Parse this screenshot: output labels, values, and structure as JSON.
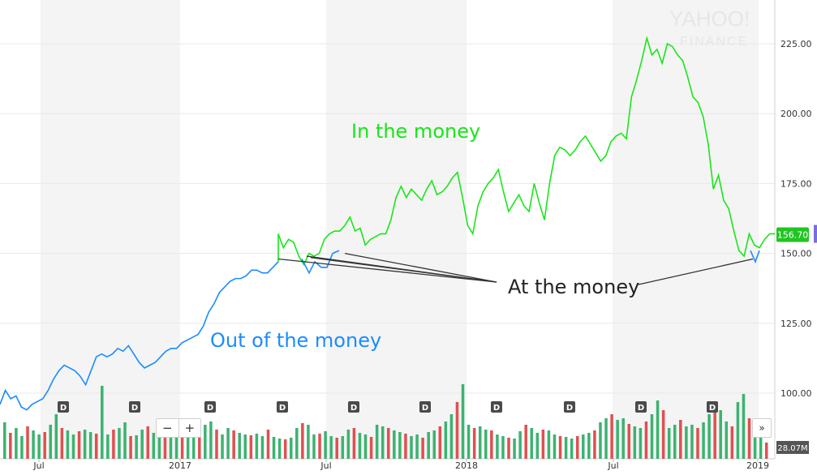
{
  "chart_data": {
    "type": "line",
    "watermark": {
      "line1": "YAHOO!",
      "line2": "FINANCE"
    },
    "x_tick_labels": [
      "Jul",
      "2017",
      "Jul",
      "2018",
      "Jul",
      "2019"
    ],
    "y_ticks": [
      "225.00",
      "200.00",
      "175.00",
      "150.00",
      "125.00",
      "100.00"
    ],
    "ylim": [
      95,
      228
    ],
    "last_price": "156.70",
    "volume_label": "28.07M",
    "dividend_marker": "D",
    "annotations": {
      "in_the_money": "In the money",
      "at_the_money": "At the money",
      "out_of_the_money": "Out of the money"
    },
    "colors": {
      "out_of_the_money": "#1a8cff",
      "in_the_money": "#19e619",
      "up_volume": "#3cb371",
      "down_volume": "#e05050",
      "price_badge": "#21c521",
      "band": "#f4f4f4"
    },
    "series": [
      {
        "name": "Out of the money",
        "color": "#1a8cff",
        "values": [
          96,
          101,
          98,
          99,
          95,
          94,
          96,
          97,
          98,
          101,
          105,
          108,
          110,
          109,
          108,
          106,
          103,
          108,
          113,
          114,
          113,
          114,
          116,
          115,
          117,
          114,
          111,
          109,
          110,
          111,
          113,
          115,
          116,
          116,
          118,
          119,
          120,
          121,
          124,
          129,
          132,
          136,
          138,
          140,
          141,
          141,
          142,
          144,
          144,
          143,
          143,
          145,
          147
        ]
      },
      {
        "name": "In the money",
        "color": "#19e619",
        "values": [
          157,
          152,
          155,
          154,
          149,
          146,
          150,
          149,
          150,
          155,
          157,
          158,
          158,
          160,
          163,
          158,
          159,
          153,
          155,
          156,
          157,
          157,
          162,
          170,
          174,
          170,
          173,
          171,
          169,
          173,
          176,
          171,
          172,
          174,
          177,
          179,
          170,
          160,
          157,
          167,
          172,
          175,
          177,
          180,
          172,
          165,
          168,
          171,
          167,
          165,
          175,
          168,
          162,
          175,
          185,
          188,
          187,
          185,
          187,
          190,
          192,
          189,
          186,
          183,
          185,
          190,
          192,
          193,
          191,
          206,
          212,
          219,
          227,
          221,
          223,
          218,
          225,
          224,
          221,
          219,
          213,
          206,
          204,
          199,
          189,
          173,
          178,
          169,
          166,
          158,
          151,
          149,
          157,
          153,
          152,
          155,
          157,
          157
        ]
      }
    ],
    "at_the_money_points": [
      147,
      150,
      151,
      149
    ],
    "volume": [
      45,
      32,
      38,
      28,
      40,
      35,
      30,
      33,
      42,
      55,
      38,
      35,
      30,
      34,
      36,
      33,
      31,
      90,
      30,
      36,
      38,
      45,
      28,
      29,
      36,
      40,
      32,
      27,
      30,
      28,
      38,
      30,
      36,
      34,
      40,
      42,
      46,
      36,
      30,
      38,
      35,
      32,
      30,
      29,
      31,
      28,
      36,
      27,
      25,
      24,
      26,
      38,
      44,
      42,
      30,
      31,
      34,
      28,
      26,
      28,
      36,
      38,
      32,
      30,
      27,
      42,
      40,
      38,
      35,
      33,
      31,
      28,
      30,
      26,
      33,
      35,
      40,
      46,
      55,
      70,
      92,
      42,
      38,
      40,
      36,
      35,
      30,
      28,
      26,
      25,
      34,
      42,
      38,
      32,
      36,
      35,
      30,
      28,
      27,
      25,
      28,
      30,
      32,
      35,
      45,
      50,
      55,
      48,
      50,
      43,
      40,
      38,
      46,
      55,
      72,
      60,
      38,
      42,
      48,
      40,
      42,
      38,
      45,
      55,
      62,
      60,
      46,
      40,
      70,
      80,
      50,
      40,
      30,
      20
    ],
    "volume_direction": "alternating"
  }
}
